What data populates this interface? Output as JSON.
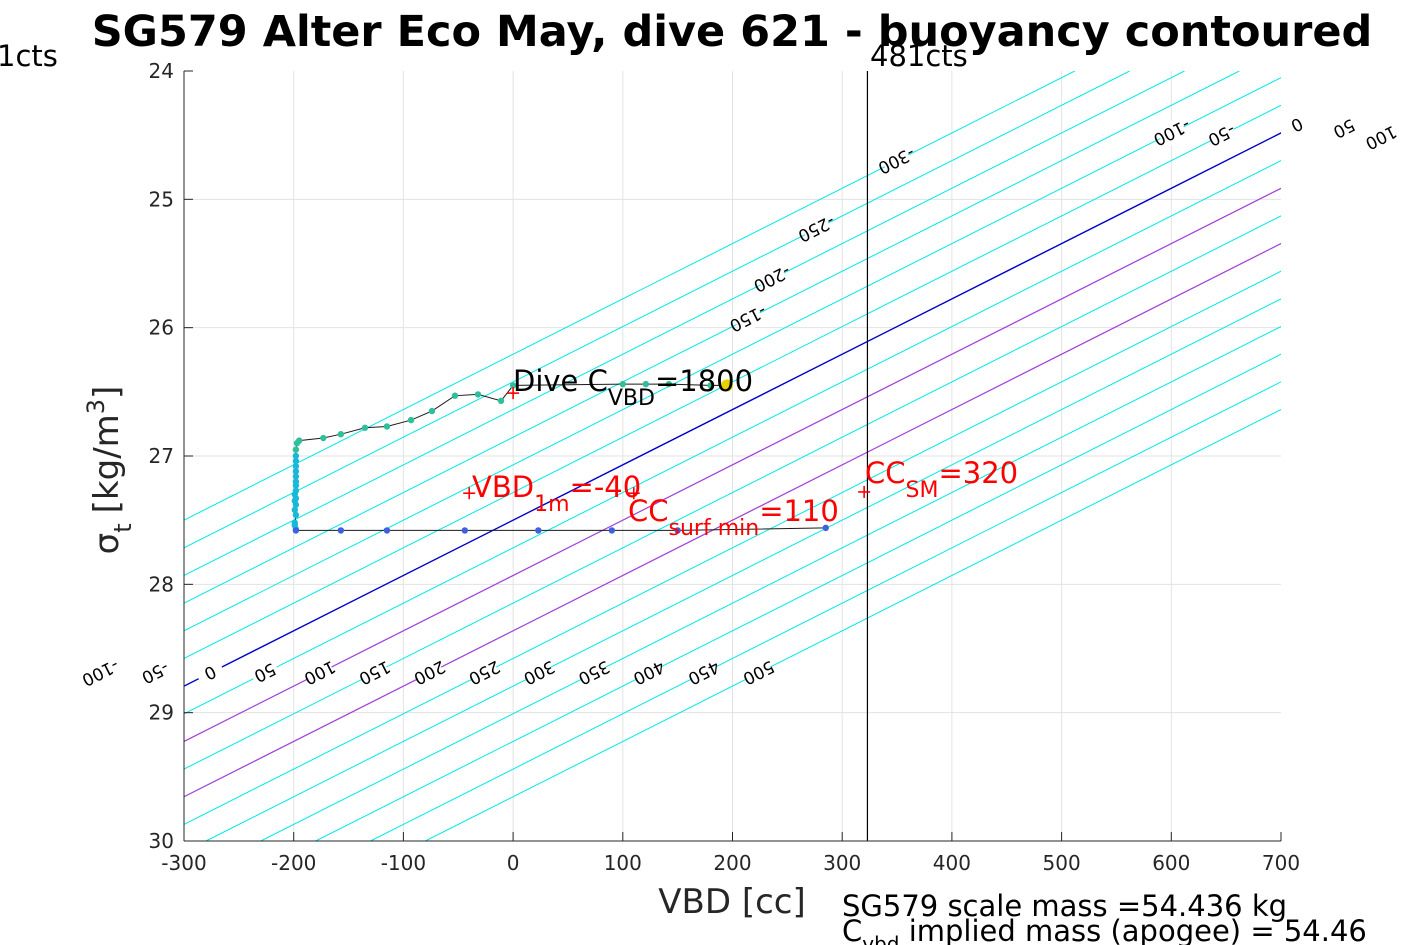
{
  "chart_data": {
    "type": "line",
    "title": "SG579 Alter Eco May, dive 621 - buoyancy contoured",
    "xlabel": "VBD [cc]",
    "ylabel": "σ_t [kg/m³]",
    "ylabel_main": "σ",
    "ylabel_sub": "t",
    "ylabel_unit": "[kg/m",
    "ylabel_sup": "3",
    "ylabel_close": "]",
    "xlim": [
      -300,
      700
    ],
    "ylim": [
      24,
      30
    ],
    "y_reversed": true,
    "xticks": [
      -300,
      -200,
      -100,
      0,
      100,
      200,
      300,
      400,
      500,
      600,
      700
    ],
    "yticks": [
      24,
      25,
      26,
      27,
      28,
      29,
      30
    ],
    "grid": true,
    "contour_slope_vbd_per_sigma": -232,
    "contours": {
      "cyan": [
        -300,
        -250,
        -200,
        -150,
        -100,
        -50,
        50,
        100,
        150,
        200,
        250,
        300,
        350,
        400,
        450,
        500
      ],
      "zero_blue": [
        0
      ],
      "purple": [
        100,
        200
      ],
      "top_labels": [
        -300,
        -250,
        -200,
        -150,
        -100,
        -50,
        0,
        50,
        100,
        150,
        200,
        250,
        300,
        350,
        400,
        450,
        500
      ],
      "bottom_labels": [
        -100,
        -50,
        0,
        50,
        100,
        150,
        200,
        250,
        300,
        350,
        400,
        450,
        500
      ]
    },
    "contour_colors": {
      "cyan": "#00e8e8",
      "zero": "#0000cc",
      "purple": "#b03cd8"
    },
    "vline": {
      "x": 323,
      "label_left": "1cts",
      "label_right": "481cts",
      "color": "#000000"
    },
    "series": [
      {
        "role": "dive trace",
        "points": [
          [
            -198,
            27.57
          ],
          [
            -199,
            27.54
          ],
          [
            -199,
            27.52
          ],
          [
            -198,
            27.46
          ],
          [
            -199,
            27.42
          ],
          [
            -198,
            27.38
          ],
          [
            -199,
            27.35
          ],
          [
            -198,
            27.33
          ],
          [
            -199,
            27.3
          ],
          [
            -198,
            27.27
          ],
          [
            -198,
            27.23
          ],
          [
            -198,
            27.2
          ],
          [
            -198,
            27.16
          ],
          [
            -198,
            27.12
          ],
          [
            -198,
            27.08
          ],
          [
            -198,
            27.04
          ],
          [
            -198,
            27.0
          ],
          [
            -198,
            26.95
          ],
          [
            -197,
            26.9
          ],
          [
            -195,
            26.88
          ],
          [
            -173,
            26.86
          ],
          [
            -157,
            26.83
          ],
          [
            -135,
            26.78
          ],
          [
            -115,
            26.77
          ],
          [
            -93,
            26.72
          ],
          [
            -74,
            26.65
          ],
          [
            -53,
            26.53
          ],
          [
            -32,
            26.52
          ],
          [
            -11,
            26.57
          ],
          [
            0,
            26.45
          ],
          [
            100,
            26.44
          ],
          [
            121,
            26.44
          ],
          [
            142,
            26.44
          ],
          [
            180,
            26.45
          ],
          [
            195,
            26.45
          ]
        ]
      },
      {
        "role": "ascent trace",
        "points": [
          [
            -198,
            27.58
          ],
          [
            -157,
            27.58
          ],
          [
            -115,
            27.58
          ],
          [
            -44,
            27.58
          ],
          [
            23,
            27.58
          ],
          [
            90,
            27.58
          ],
          [
            150,
            27.58
          ],
          [
            285,
            27.56
          ]
        ]
      }
    ],
    "point_colors": {
      "descent": "#2fbf9a",
      "mid": "#1ab8d8",
      "ascent": "#4060e0",
      "highlight": "#e6d400"
    },
    "highlight_point": [
      195,
      26.45
    ],
    "annotations": {
      "dive_cvbd": {
        "x": 0,
        "y": 26.51,
        "main": "Dive C",
        "sub": "VBD",
        "tail": "=1800"
      },
      "vbd_1m": {
        "x": -40,
        "y": 27.29,
        "main": "VBD",
        "sub": "1m",
        "tail": "=-40"
      },
      "cc_surf_min": {
        "x": 110,
        "y": 27.29,
        "main": "CC",
        "sub": "surf min",
        "tail": "=110"
      },
      "cc_sm": {
        "x": 320,
        "y": 27.28,
        "main": "CC",
        "sub": "SM",
        "tail": "=320"
      }
    },
    "footer": {
      "scale_mass": "SG579 scale mass =54.436 kg",
      "cvbd_main": "C",
      "cvbd_sub": "vbd",
      "cvbd_tail": " implied mass (apogee) = 54.46"
    }
  }
}
